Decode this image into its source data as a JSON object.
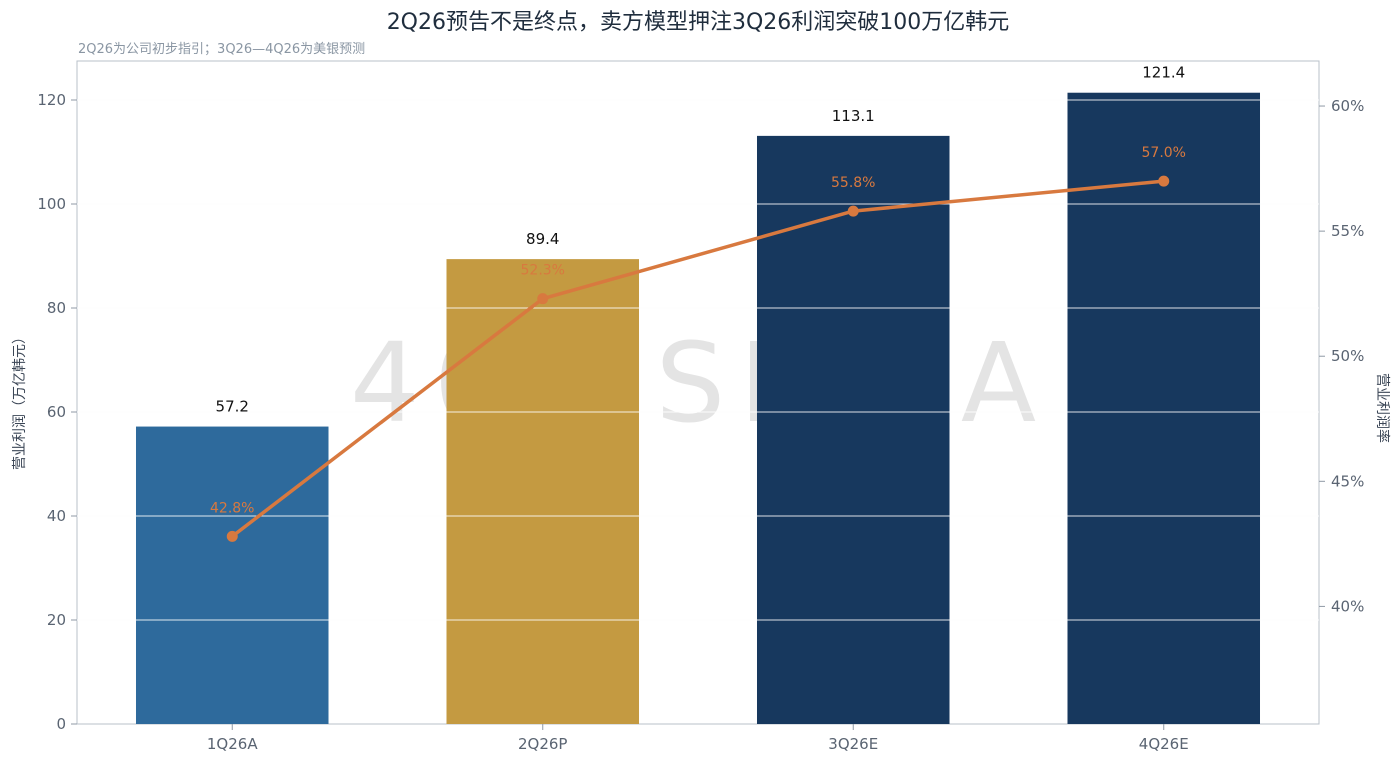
{
  "page": {
    "title": "2Q26预告不是终点，卖方模型押注3Q26利润突破100万亿韩元",
    "subtitle": "2Q26为公司初步指引；3Q26—4Q26为美银预测",
    "watermark": "404-SEA-A"
  },
  "chart_data": {
    "type": "bar",
    "title": "2Q26预告不是终点，卖方模型押注3Q26利润突破100万亿韩元",
    "subtitle": "2Q26为公司初步指引；3Q26—4Q26为美银预测",
    "categories": [
      "1Q26A",
      "2Q26P",
      "3Q26E",
      "4Q26E"
    ],
    "series": [
      {
        "name": "营业利润",
        "axis": "left",
        "type": "bar",
        "values": [
          57.2,
          89.4,
          113.1,
          121.4
        ],
        "value_labels": [
          "57.2",
          "89.4",
          "113.1",
          "121.4"
        ],
        "colors": [
          "#2e6a9c",
          "#c49a41",
          "#17385e",
          "#17385e"
        ]
      },
      {
        "name": "营业利润率",
        "axis": "right",
        "type": "line",
        "values": [
          42.8,
          52.3,
          55.8,
          57.0
        ],
        "value_labels": [
          "42.8%",
          "52.3%",
          "55.8%",
          "57.0%"
        ],
        "color": "#d8793f"
      }
    ],
    "ylabel": "营业利润（万亿韩元）",
    "y2label": "营业利润率",
    "ylim": [
      0,
      127.5
    ],
    "y2lim": [
      35.3,
      61.8
    ],
    "yticks": [
      0,
      20,
      40,
      60,
      80,
      100,
      120
    ],
    "y2ticks": [
      40,
      45,
      50,
      55,
      60
    ],
    "y2tick_suffix": "%",
    "grid": true,
    "legend": "none"
  }
}
